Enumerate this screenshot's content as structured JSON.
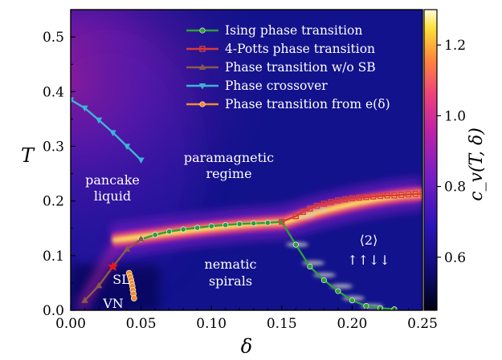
{
  "chart_data": {
    "type": "heatmap",
    "xlabel": "δ",
    "ylabel": "T",
    "xlim": [
      0.0,
      0.25
    ],
    "ylim": [
      0.0,
      0.55
    ],
    "xticks": [
      "0.00",
      "0.05",
      "0.10",
      "0.15",
      "0.20",
      "0.25"
    ],
    "yticks": [
      "0.0",
      "0.1",
      "0.2",
      "0.3",
      "0.4",
      "0.5"
    ],
    "colorbar": {
      "label": "c_v(T, δ)",
      "range": [
        0.45,
        1.3
      ],
      "ticks": [
        "0.6",
        "0.8",
        "1.0",
        "1.2"
      ],
      "colormap": "plasma-like (navy → purple → magenta → orange → yellow → white)"
    },
    "series": [
      {
        "name": "Ising phase transition",
        "color": "#2e9e3a",
        "marker": "circle",
        "x": [
          0.05,
          0.06,
          0.07,
          0.08,
          0.09,
          0.1,
          0.11,
          0.12,
          0.13,
          0.14,
          0.15,
          0.16,
          0.17,
          0.18,
          0.19,
          0.2,
          0.21,
          0.22,
          0.23
        ],
        "y": [
          0.13,
          0.138,
          0.144,
          0.148,
          0.151,
          0.154,
          0.156,
          0.158,
          0.159,
          0.16,
          0.162,
          0.12,
          0.08,
          0.055,
          0.035,
          0.018,
          0.008,
          0.004,
          0.002
        ]
      },
      {
        "name": "4-Potts phase transition",
        "color": "#d93a3a",
        "marker": "square",
        "x": [
          0.15,
          0.16,
          0.165,
          0.17,
          0.175,
          0.18,
          0.185,
          0.19,
          0.195,
          0.2,
          0.205,
          0.21,
          0.215,
          0.22,
          0.225,
          0.23,
          0.235,
          0.24,
          0.245,
          0.25
        ],
        "y": [
          0.162,
          0.172,
          0.18,
          0.186,
          0.191,
          0.195,
          0.198,
          0.201,
          0.203,
          0.205,
          0.206,
          0.207,
          0.208,
          0.209,
          0.21,
          0.21,
          0.211,
          0.212,
          0.213,
          0.213
        ]
      },
      {
        "name": "Phase transition w/o SB",
        "color": "#8a5a4a",
        "marker": "triangle-up",
        "x": [
          0.01,
          0.02,
          0.03,
          0.04,
          0.05
        ],
        "y": [
          0.018,
          0.045,
          0.08,
          0.112,
          0.13
        ]
      },
      {
        "name": "Phase crossover",
        "color": "#3bb5d6",
        "marker": "triangle-down",
        "x": [
          0.0,
          0.01,
          0.02,
          0.03,
          0.04,
          0.05
        ],
        "y": [
          0.385,
          0.37,
          0.348,
          0.325,
          0.3,
          0.275
        ]
      },
      {
        "name": "Phase transition from e(δ)",
        "color": "#f28c28",
        "marker": "circle",
        "x": [
          0.0415,
          0.0422,
          0.0428,
          0.0433,
          0.0438,
          0.0442,
          0.0446,
          0.045
        ],
        "y": [
          0.068,
          0.062,
          0.056,
          0.05,
          0.044,
          0.037,
          0.03,
          0.022
        ]
      }
    ],
    "special_point": {
      "x": 0.03,
      "y": 0.08,
      "marker": "red-star"
    },
    "region_labels": [
      "pancake",
      "liquid",
      "paramagnetic",
      "regime",
      "nematic",
      "spirals",
      "SL",
      "VN",
      "⟨2⟩",
      "↑↑↓↓"
    ],
    "legend_position": "top-right"
  }
}
